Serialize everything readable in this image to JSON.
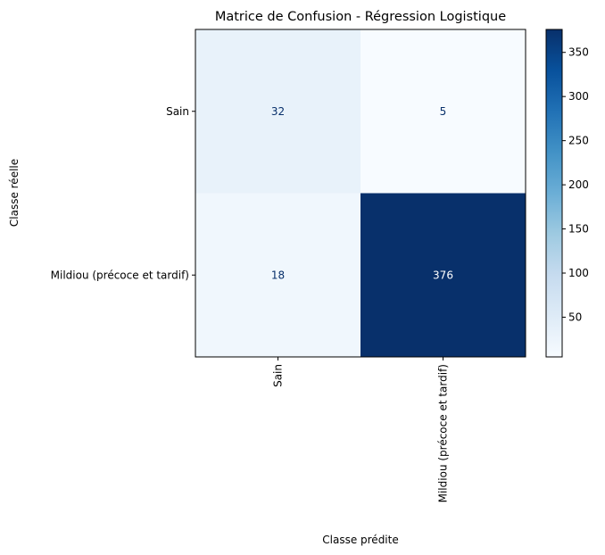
{
  "chart_data": {
    "type": "heatmap",
    "title": "Matrice de Confusion - Régression Logistique",
    "xlabel": "Classe prédite",
    "ylabel": "Classe réelle",
    "x_categories": [
      "Sain",
      "Mildiou (précoce et tardif)"
    ],
    "y_categories": [
      "Sain",
      "Mildiou (précoce et tardif)"
    ],
    "matrix": [
      [
        32,
        5
      ],
      [
        18,
        376
      ]
    ],
    "cell_labels": [
      [
        "32",
        "5"
      ],
      [
        "18",
        "376"
      ]
    ],
    "colormap": "Blues",
    "colorbar": {
      "ticks": [
        50,
        100,
        150,
        200,
        250,
        300,
        350
      ],
      "tick_labels": [
        "50",
        "100",
        "150",
        "200",
        "250",
        "300",
        "350"
      ],
      "range": [
        5,
        376
      ]
    }
  }
}
